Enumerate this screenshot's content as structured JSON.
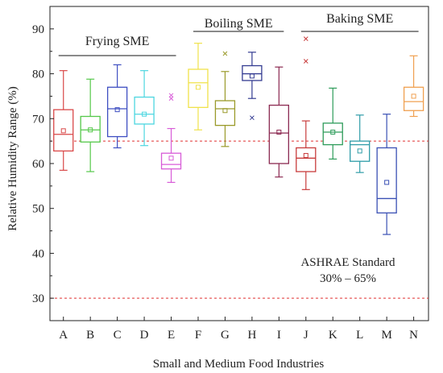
{
  "chart_data": {
    "type": "box",
    "title": "",
    "xlabel": "Small and Medium Food Industries",
    "ylabel": "Relative Humidity Range (%)",
    "ylim": [
      25,
      95
    ],
    "yticks": [
      30,
      40,
      50,
      60,
      70,
      80,
      90
    ],
    "grid": false,
    "categories": [
      "A",
      "B",
      "C",
      "D",
      "E",
      "F",
      "G",
      "H",
      "I",
      "J",
      "K",
      "L",
      "M",
      "N"
    ],
    "boxes": [
      {
        "cat": "A",
        "min": 58.5,
        "q1": 62.8,
        "median": 66.5,
        "q3": 72.0,
        "max": 80.7,
        "mean": 67.3,
        "outliers": [],
        "color": "#d94848"
      },
      {
        "cat": "B",
        "min": 58.2,
        "q1": 64.8,
        "median": 67.5,
        "q3": 70.5,
        "max": 78.8,
        "mean": 67.5,
        "outliers": [],
        "color": "#55c84a"
      },
      {
        "cat": "C",
        "min": 63.5,
        "q1": 66.0,
        "median": 72.2,
        "q3": 77.0,
        "max": 82.0,
        "mean": 72.0,
        "outliers": [],
        "color": "#3f4fc2"
      },
      {
        "cat": "D",
        "min": 64.0,
        "q1": 68.8,
        "median": 71.0,
        "q3": 74.8,
        "max": 80.7,
        "mean": 71.0,
        "outliers": [],
        "color": "#4dd6e0"
      },
      {
        "cat": "E",
        "min": 55.8,
        "q1": 58.8,
        "median": 59.8,
        "q3": 62.3,
        "max": 67.8,
        "mean": 61.2,
        "outliers": [
          74.5,
          75.2
        ],
        "color": "#d85cd8"
      },
      {
        "cat": "F",
        "min": 67.5,
        "q1": 72.5,
        "median": 78.0,
        "q3": 81.0,
        "max": 86.8,
        "mean": 77.0,
        "outliers": [],
        "color": "#f0e24a"
      },
      {
        "cat": "G",
        "min": 63.8,
        "q1": 68.5,
        "median": 72.2,
        "q3": 74.0,
        "max": 80.5,
        "mean": 71.8,
        "outliers": [
          84.5
        ],
        "color": "#9a9a2a"
      },
      {
        "cat": "H",
        "min": 74.5,
        "q1": 78.5,
        "median": 80.0,
        "q3": 81.8,
        "max": 84.8,
        "mean": 79.5,
        "outliers": [
          70.2
        ],
        "color": "#343c92"
      },
      {
        "cat": "I",
        "min": 57.0,
        "q1": 60.0,
        "median": 66.8,
        "q3": 73.0,
        "max": 81.5,
        "mean": 67.0,
        "outliers": [],
        "color": "#8c2a52"
      },
      {
        "cat": "J",
        "min": 54.2,
        "q1": 58.2,
        "median": 61.2,
        "q3": 63.5,
        "max": 69.5,
        "mean": 61.8,
        "outliers": [
          82.8,
          87.8
        ],
        "color": "#c83c3c"
      },
      {
        "cat": "K",
        "min": 61.0,
        "q1": 64.2,
        "median": 67.0,
        "q3": 69.0,
        "max": 76.8,
        "mean": 67.0,
        "outliers": [],
        "color": "#2e9c5a"
      },
      {
        "cat": "L",
        "min": 58.0,
        "q1": 60.5,
        "median": 64.2,
        "q3": 65.0,
        "max": 70.8,
        "mean": 62.8,
        "outliers": [],
        "color": "#2e9ca8"
      },
      {
        "cat": "M",
        "min": 44.2,
        "q1": 49.0,
        "median": 52.2,
        "q3": 63.5,
        "max": 71.0,
        "mean": 55.8,
        "outliers": [],
        "color": "#3a50b4"
      },
      {
        "cat": "N",
        "min": 70.5,
        "q1": 71.8,
        "median": 73.8,
        "q3": 77.0,
        "max": 84.0,
        "mean": 75.0,
        "outliers": [],
        "color": "#f0a050"
      }
    ],
    "reference_lines": [
      {
        "y": 65,
        "style": "dashed",
        "color": "#e03030"
      },
      {
        "y": 30,
        "style": "dashed",
        "color": "#e03030"
      }
    ],
    "groups": [
      {
        "label": "Frying SME",
        "from": "A",
        "to": "E"
      },
      {
        "label": "Boiling SME",
        "from": "F",
        "to": "I"
      },
      {
        "label": "Baking SME",
        "from": "J",
        "to": "N"
      }
    ],
    "annotations": {
      "standard_title": "ASHRAE Standard",
      "standard_range": "30% – 65%"
    }
  }
}
